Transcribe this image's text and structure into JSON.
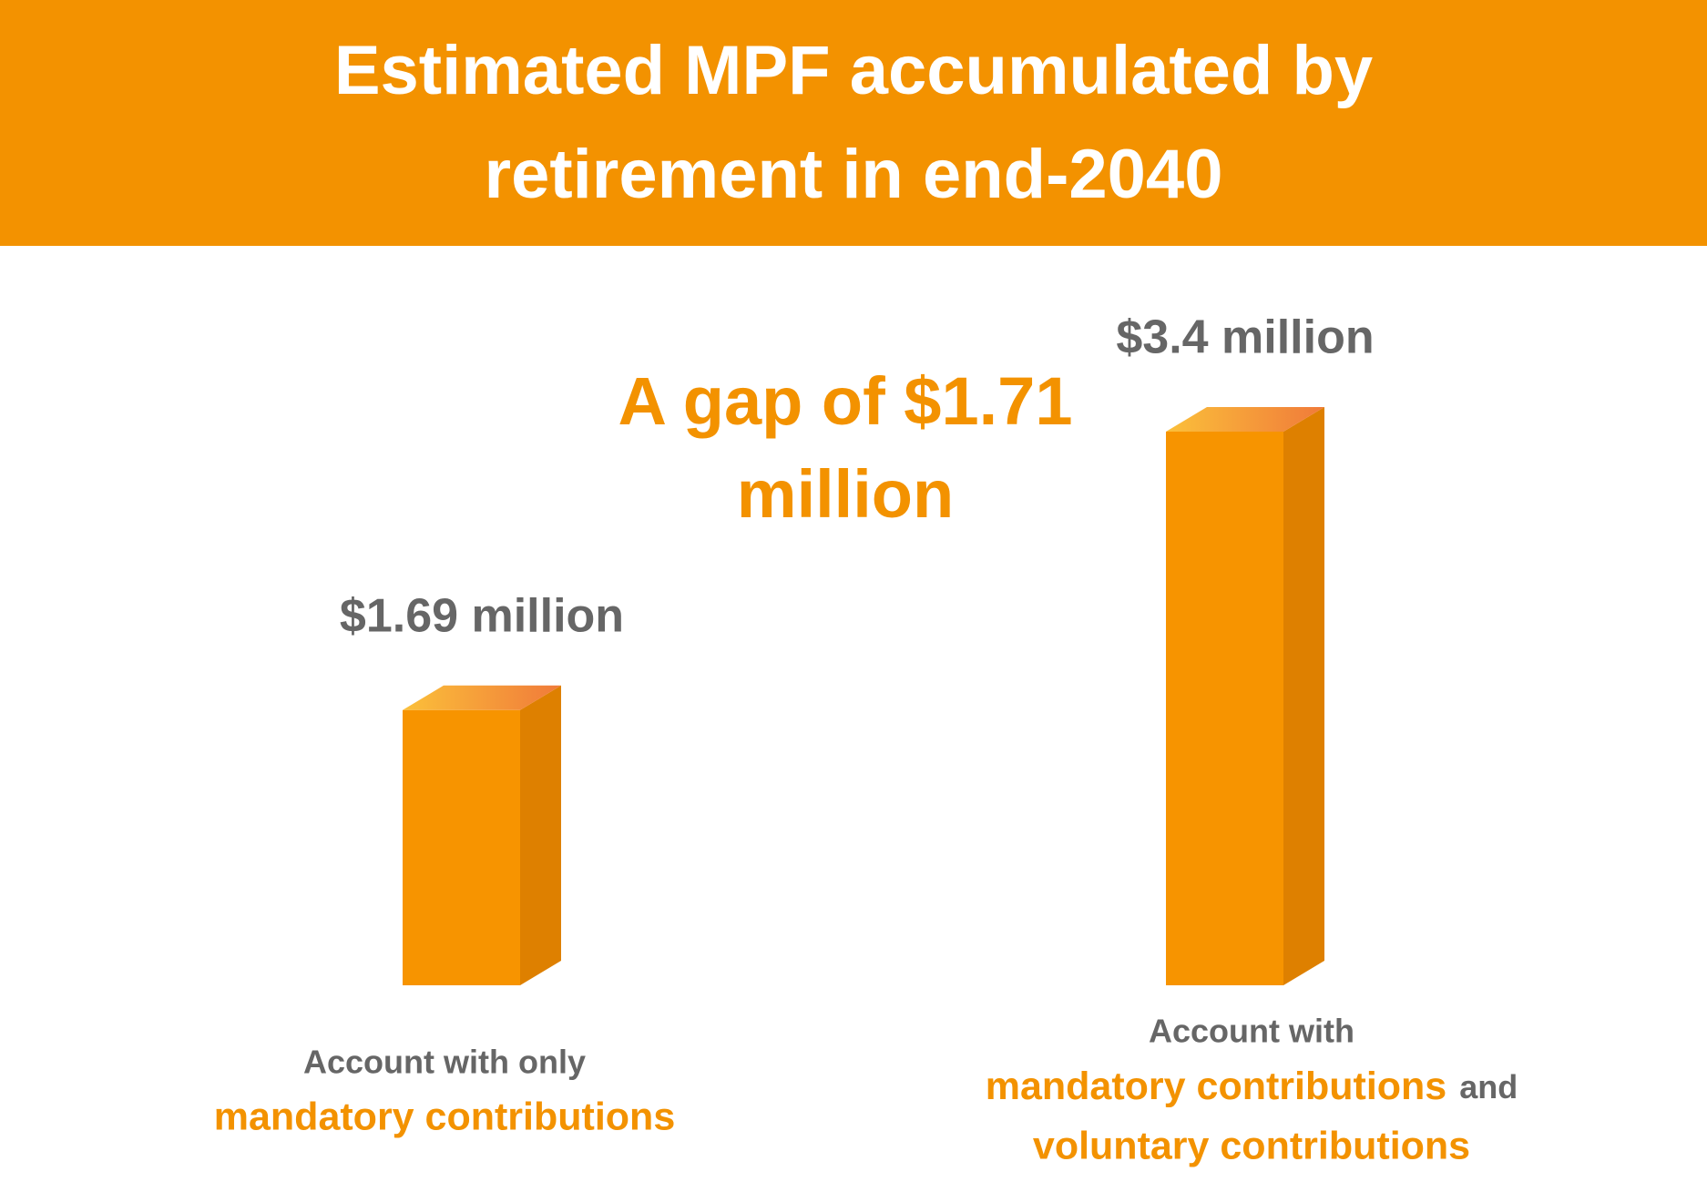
{
  "chart_data": {
    "type": "bar",
    "title": "Estimated MPF accumulated by retirement in end-2040",
    "annotation": "A gap of $1.71 million",
    "categories": [
      [
        "Account with only",
        "mandatory contributions"
      ],
      [
        "Account with",
        "mandatory contributions",
        "and",
        "voluntary contributions"
      ]
    ],
    "values": [
      1.69,
      3.4
    ],
    "value_labels": [
      "$1.69 million",
      "$3.4 million"
    ],
    "color": "#f79400"
  }
}
